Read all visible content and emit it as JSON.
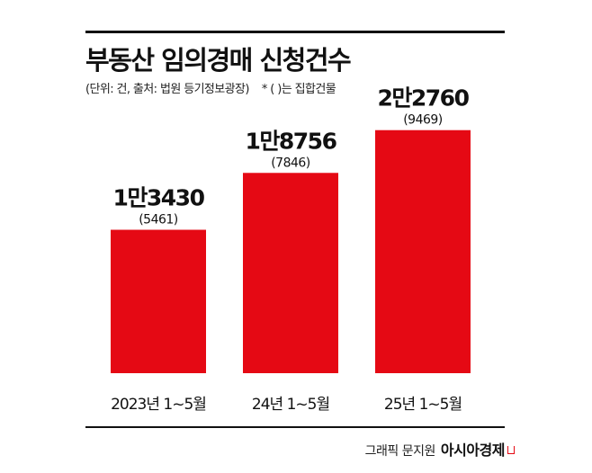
{
  "header": {
    "title": "부동산 임의경매 신청건수",
    "unit_note": "(단위: 건, 출처: 법원 등기정보광장)",
    "paren_note": "* ( )는 집합건물"
  },
  "chart_data": {
    "type": "bar",
    "title": "부동산 임의경매 신청건수",
    "categories": [
      "2023년 1~5월",
      "24년 1~5월",
      "25년 1~5월"
    ],
    "values": [
      13430,
      18756,
      22760
    ],
    "value_labels": [
      "1만3430",
      "1만8756",
      "2만2760"
    ],
    "sub_values": [
      5461,
      7846,
      9469
    ],
    "sub_labels": [
      "(5461)",
      "(7846)",
      "(9469)"
    ],
    "ylim": [
      0,
      24000
    ],
    "grid": false,
    "bar_color": "#e50914"
  },
  "footer": {
    "credit": "그래픽 문지원",
    "brand": "아시아경제"
  }
}
